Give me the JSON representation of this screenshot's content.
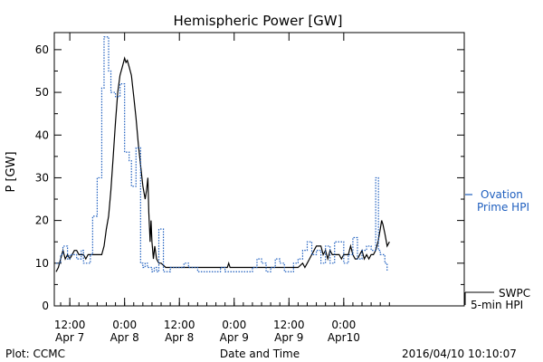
{
  "chart_data": {
    "type": "line",
    "title": "Hemispheric Power [GW]",
    "xlabel": "Date and Time",
    "ylabel": "P [GW]",
    "ylim": [
      0,
      64
    ],
    "yticks": [
      0,
      10,
      20,
      30,
      40,
      50,
      60
    ],
    "xlim": [
      0,
      89
    ],
    "xticks": [
      {
        "x": 3,
        "label1": "12:00",
        "label2": "Apr 7"
      },
      {
        "x": 15,
        "label1": "0:00",
        "label2": "Apr 8"
      },
      {
        "x": 27,
        "label1": "12:00",
        "label2": "Apr 8"
      },
      {
        "x": 39,
        "label1": "0:00",
        "label2": "Apr 9"
      },
      {
        "x": 51,
        "label1": "12:00",
        "label2": "Apr 9"
      },
      {
        "x": 63,
        "label1": "0:00",
        "label2": "Apr10"
      }
    ],
    "grid": false,
    "legend_position": "right",
    "footer_left": "Plot: CCMC",
    "footer_right": "2016/04/10 10:10:07",
    "series": [
      {
        "name": "SWPC 5-min HPI",
        "legend_label1": "SWPC",
        "legend_label2": "5-min HPI",
        "color": "#000000",
        "style": "solid",
        "points": [
          [
            0,
            8
          ],
          [
            0.5,
            9
          ],
          [
            1,
            11
          ],
          [
            1.5,
            13
          ],
          [
            2,
            11
          ],
          [
            2.5,
            12
          ],
          [
            3,
            11
          ],
          [
            3.5,
            12
          ],
          [
            4,
            13
          ],
          [
            4.5,
            13
          ],
          [
            5,
            12
          ],
          [
            5.5,
            12
          ],
          [
            6,
            12
          ],
          [
            6.5,
            11
          ],
          [
            7,
            12
          ],
          [
            8,
            12
          ],
          [
            9,
            12
          ],
          [
            10,
            12
          ],
          [
            10.5,
            14
          ],
          [
            11,
            18
          ],
          [
            11.5,
            21
          ],
          [
            12,
            27
          ],
          [
            12.5,
            35
          ],
          [
            13,
            43
          ],
          [
            13.5,
            50
          ],
          [
            14,
            54
          ],
          [
            14.5,
            56
          ],
          [
            15,
            58
          ],
          [
            15.3,
            57
          ],
          [
            15.6,
            57.5
          ],
          [
            16,
            56
          ],
          [
            16.5,
            54
          ],
          [
            17,
            49
          ],
          [
            17.5,
            44
          ],
          [
            18,
            38
          ],
          [
            18.5,
            33
          ],
          [
            19,
            28
          ],
          [
            19.5,
            25
          ],
          [
            19.8,
            27
          ],
          [
            20.1,
            30
          ],
          [
            20.3,
            22
          ],
          [
            20.6,
            15
          ],
          [
            20.8,
            20
          ],
          [
            21,
            15
          ],
          [
            21.3,
            11
          ],
          [
            21.6,
            14
          ],
          [
            22,
            11
          ],
          [
            22.5,
            10
          ],
          [
            23,
            10
          ],
          [
            23.5,
            9.5
          ],
          [
            24,
            9
          ],
          [
            25,
            9
          ],
          [
            26,
            9
          ],
          [
            28,
            9
          ],
          [
            30,
            9
          ],
          [
            32,
            9
          ],
          [
            34,
            9
          ],
          [
            36,
            9
          ],
          [
            37.5,
            9
          ],
          [
            37.8,
            10
          ],
          [
            38.1,
            9
          ],
          [
            40,
            9
          ],
          [
            42,
            9
          ],
          [
            44,
            9
          ],
          [
            46,
            9
          ],
          [
            48,
            9
          ],
          [
            50,
            9
          ],
          [
            52,
            9
          ],
          [
            53,
            9
          ],
          [
            54,
            10
          ],
          [
            54.5,
            9
          ],
          [
            55,
            10
          ],
          [
            55.5,
            11
          ],
          [
            56,
            12
          ],
          [
            56.5,
            13
          ],
          [
            57,
            14
          ],
          [
            57.5,
            14
          ],
          [
            58,
            14
          ],
          [
            58.5,
            12
          ],
          [
            59,
            13
          ],
          [
            59.5,
            11
          ],
          [
            60,
            13
          ],
          [
            60.5,
            12
          ],
          [
            61,
            12
          ],
          [
            62,
            12
          ],
          [
            62.5,
            11
          ],
          [
            63,
            12
          ],
          [
            63.5,
            12
          ],
          [
            64,
            12
          ],
          [
            64.5,
            14
          ],
          [
            65,
            12
          ],
          [
            65.5,
            11
          ],
          [
            66,
            11
          ],
          [
            66.5,
            12
          ],
          [
            67,
            13
          ],
          [
            67.5,
            11
          ],
          [
            68,
            12
          ],
          [
            68.5,
            11
          ],
          [
            69,
            12
          ],
          [
            69.5,
            12
          ],
          [
            70,
            13
          ],
          [
            70.5,
            15
          ],
          [
            71,
            18
          ],
          [
            71.3,
            20
          ],
          [
            71.6,
            19
          ],
          [
            72,
            17
          ],
          [
            72.5,
            14
          ],
          [
            73,
            15
          ]
        ]
      },
      {
        "name": "Ovation Prime HPI",
        "legend_label1": "Ovation",
        "legend_label2": "Prime HPI",
        "color": "#1f5fbf",
        "style": "dotted-step",
        "points": [
          [
            0,
            10
          ],
          [
            1,
            12
          ],
          [
            1.5,
            14
          ],
          [
            2.5,
            11
          ],
          [
            3,
            12
          ],
          [
            4,
            12
          ],
          [
            4.5,
            11
          ],
          [
            5,
            11
          ],
          [
            5.5,
            13
          ],
          [
            6,
            10
          ],
          [
            7,
            10
          ],
          [
            7.5,
            12
          ],
          [
            8,
            21
          ],
          [
            8.5,
            21
          ],
          [
            9,
            30
          ],
          [
            9.5,
            30
          ],
          [
            10,
            51
          ],
          [
            10.5,
            63
          ],
          [
            11,
            63
          ],
          [
            11.5,
            55
          ],
          [
            12,
            50
          ],
          [
            13,
            49
          ],
          [
            14,
            52
          ],
          [
            15,
            36
          ],
          [
            16,
            34
          ],
          [
            16.5,
            28
          ],
          [
            17,
            28
          ],
          [
            17.5,
            37
          ],
          [
            18,
            37
          ],
          [
            18.5,
            10
          ],
          [
            19,
            9
          ],
          [
            19.5,
            10
          ],
          [
            20,
            9
          ],
          [
            20.5,
            9
          ],
          [
            21,
            8
          ],
          [
            21.5,
            9
          ],
          [
            22,
            8
          ],
          [
            22.5,
            18
          ],
          [
            23,
            18
          ],
          [
            23.5,
            8
          ],
          [
            24,
            8
          ],
          [
            25,
            9
          ],
          [
            26,
            9
          ],
          [
            27,
            9
          ],
          [
            28,
            10
          ],
          [
            29,
            9
          ],
          [
            30,
            9
          ],
          [
            31,
            8
          ],
          [
            32,
            8
          ],
          [
            33,
            8
          ],
          [
            34,
            8
          ],
          [
            35,
            8
          ],
          [
            36,
            9
          ],
          [
            37,
            8
          ],
          [
            38,
            8
          ],
          [
            39,
            8
          ],
          [
            40,
            8
          ],
          [
            41,
            8
          ],
          [
            42,
            8
          ],
          [
            43,
            9
          ],
          [
            44,
            11
          ],
          [
            45,
            10
          ],
          [
            46,
            8
          ],
          [
            47,
            9
          ],
          [
            48,
            11
          ],
          [
            49,
            10
          ],
          [
            50,
            8
          ],
          [
            51,
            8
          ],
          [
            52,
            10
          ],
          [
            53,
            11
          ],
          [
            54,
            13
          ],
          [
            55,
            15
          ],
          [
            56,
            12
          ],
          [
            57,
            13
          ],
          [
            58,
            10
          ],
          [
            59,
            14
          ],
          [
            60,
            10
          ],
          [
            61,
            15
          ],
          [
            62,
            15
          ],
          [
            63,
            10
          ],
          [
            64,
            12
          ],
          [
            65,
            16
          ],
          [
            66,
            11
          ],
          [
            67,
            13
          ],
          [
            68,
            14
          ],
          [
            69,
            13
          ],
          [
            70,
            30
          ],
          [
            70.6,
            13
          ],
          [
            71,
            12
          ],
          [
            71.5,
            12
          ],
          [
            72,
            10
          ],
          [
            72.5,
            8
          ]
        ]
      }
    ]
  }
}
